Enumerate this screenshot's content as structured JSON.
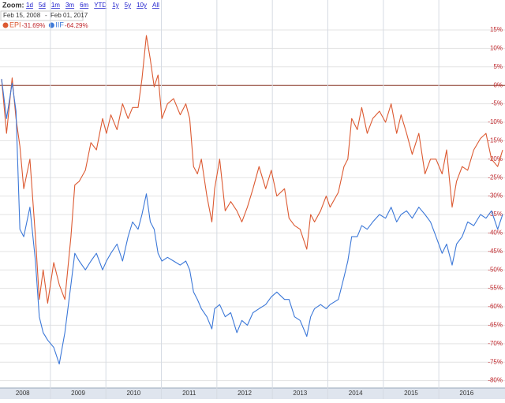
{
  "header": {
    "zoom_label": "Zoom:",
    "zoom_options": [
      "1d",
      "5d",
      "1m",
      "3m",
      "6m",
      "YTD",
      "1y",
      "5y",
      "10y",
      "All"
    ],
    "date_from": "Feb 15, 2008",
    "date_sep": "-",
    "date_to": "Feb 01, 2017"
  },
  "chart_data": {
    "type": "line",
    "x": [
      2008.12,
      2008.21,
      2008.31,
      2008.38,
      2008.45,
      2008.52,
      2008.63,
      2008.73,
      2008.8,
      2008.87,
      2008.95,
      2009.06,
      2009.16,
      2009.26,
      2009.37,
      2009.44,
      2009.52,
      2009.63,
      2009.73,
      2009.83,
      2009.94,
      2010.01,
      2010.09,
      2010.2,
      2010.3,
      2010.4,
      2010.48,
      2010.58,
      2010.65,
      2010.73,
      2010.8,
      2010.87,
      2010.94,
      2011.01,
      2011.11,
      2011.22,
      2011.34,
      2011.44,
      2011.51,
      2011.58,
      2011.65,
      2011.72,
      2011.82,
      2011.91,
      2011.96,
      2012.05,
      2012.15,
      2012.25,
      2012.36,
      2012.45,
      2012.55,
      2012.65,
      2012.76,
      2012.88,
      2012.98,
      2013.08,
      2013.22,
      2013.3,
      2013.4,
      2013.5,
      2013.62,
      2013.69,
      2013.76,
      2013.87,
      2013.97,
      2014.04,
      2014.19,
      2014.29,
      2014.36,
      2014.43,
      2014.53,
      2014.61,
      2014.71,
      2014.81,
      2014.93,
      2015.04,
      2015.14,
      2015.24,
      2015.32,
      2015.42,
      2015.52,
      2015.64,
      2015.75,
      2015.85,
      2015.95,
      2016.06,
      2016.14,
      2016.24,
      2016.32,
      2016.42,
      2016.52,
      2016.63,
      2016.75,
      2016.85,
      2016.95,
      2017.06,
      2017.15
    ],
    "series": [
      {
        "name": "EPI",
        "change": "-31.69%",
        "color": "#dc5a32",
        "values": [
          1.7,
          -13,
          2,
          -9,
          -16.5,
          -28,
          -20,
          -41,
          -58,
          -50,
          -59,
          -48,
          -54,
          -58,
          -41,
          -27,
          -26,
          -23,
          -15.5,
          -17.5,
          -9,
          -13,
          -8,
          -12,
          -5,
          -9,
          -6,
          -6,
          1.7,
          13.5,
          7,
          -0.4,
          2.8,
          -9,
          -5,
          -3.6,
          -8,
          -5,
          -9,
          -22,
          -24,
          -20,
          -30,
          -37,
          -28,
          -20,
          -34,
          -31.5,
          -34,
          -37,
          -33,
          -28,
          -22,
          -28,
          -23,
          -30,
          -28,
          -36,
          -38,
          -39,
          -44.4,
          -35,
          -37,
          -34,
          -30,
          -33,
          -29,
          -22,
          -20,
          -9,
          -12,
          -6,
          -13,
          -9,
          -7,
          -10,
          -5,
          -13,
          -8,
          -13,
          -18.7,
          -13,
          -24,
          -20,
          -20,
          -24,
          -17.5,
          -33,
          -26,
          -22,
          -23,
          -17.5,
          -14.4,
          -13,
          -20,
          -22,
          -17.5
        ]
      },
      {
        "name": "IIF",
        "change": "-64.29%",
        "color": "#3c78d8",
        "values": [
          1.7,
          -9,
          0.6,
          -7,
          -39,
          -41,
          -33,
          -47.6,
          -62.7,
          -67,
          -69,
          -71,
          -75.5,
          -67,
          -54,
          -45.5,
          -47.6,
          -50,
          -47.6,
          -45.5,
          -50,
          -47.6,
          -45.5,
          -43,
          -47.6,
          -41,
          -37,
          -39,
          -35,
          -29.4,
          -37,
          -39,
          -45.5,
          -47.6,
          -46.6,
          -47.6,
          -48.7,
          -47.6,
          -50,
          -56,
          -58,
          -60.5,
          -62.7,
          -66,
          -60.5,
          -59.4,
          -62.7,
          -61.6,
          -67,
          -63.7,
          -65,
          -61.6,
          -60.5,
          -59.4,
          -57.3,
          -56,
          -58,
          -58,
          -62.7,
          -63.7,
          -68,
          -62.7,
          -60.5,
          -59.4,
          -60.5,
          -59.4,
          -58,
          -52,
          -47.6,
          -41,
          -41,
          -38,
          -39,
          -37,
          -35,
          -36,
          -33,
          -37,
          -35,
          -34,
          -36,
          -33,
          -35,
          -37,
          -41,
          -45.5,
          -43,
          -48.7,
          -43,
          -41,
          -37,
          -38,
          -35,
          -36,
          -34,
          -39,
          -35
        ]
      }
    ],
    "xlim": [
      2008.12,
      2017.15
    ],
    "xticks": [
      {
        "value": 2008,
        "label": "2008"
      },
      {
        "value": 2009,
        "label": "2009"
      },
      {
        "value": 2010,
        "label": "2010"
      },
      {
        "value": 2011,
        "label": "2011"
      },
      {
        "value": 2012,
        "label": "2012"
      },
      {
        "value": 2013,
        "label": "2013"
      },
      {
        "value": 2014,
        "label": "2014"
      },
      {
        "value": 2015,
        "label": "2015"
      },
      {
        "value": 2016,
        "label": "2016"
      }
    ],
    "ylim": [
      -82,
      15
    ],
    "yticks": [
      {
        "value": 15,
        "label": "15%"
      },
      {
        "value": 10,
        "label": "10%"
      },
      {
        "value": 5,
        "label": "5%"
      },
      {
        "value": 0,
        "label": "0%"
      },
      {
        "value": -5,
        "label": "-5%"
      },
      {
        "value": -10,
        "label": "-10%"
      },
      {
        "value": -15,
        "label": "-15%"
      },
      {
        "value": -20,
        "label": "-20%"
      },
      {
        "value": -25,
        "label": "-25%"
      },
      {
        "value": -30,
        "label": "-30%"
      },
      {
        "value": -35,
        "label": "-35%"
      },
      {
        "value": -40,
        "label": "-40%"
      },
      {
        "value": -45,
        "label": "-45%"
      },
      {
        "value": -50,
        "label": "-50%"
      },
      {
        "value": -55,
        "label": "-55%"
      },
      {
        "value": -60,
        "label": "-60%"
      },
      {
        "value": -65,
        "label": "-65%"
      },
      {
        "value": -70,
        "label": "-70%"
      },
      {
        "value": -75,
        "label": "-75%"
      },
      {
        "value": -80,
        "label": "-80%"
      }
    ],
    "grid": true
  }
}
